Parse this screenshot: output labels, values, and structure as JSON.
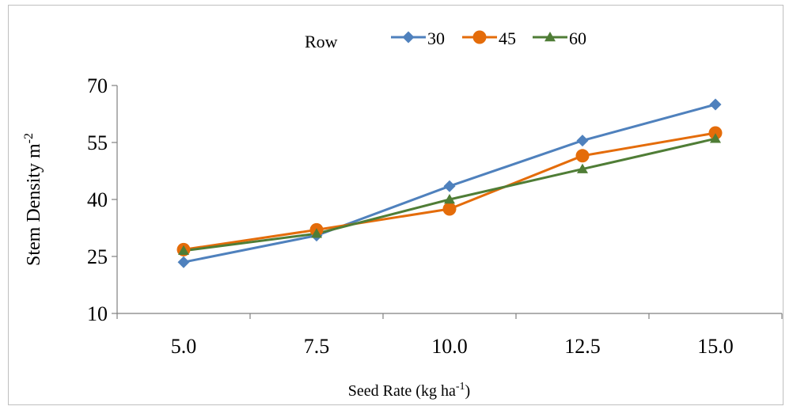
{
  "chart_data": {
    "type": "line",
    "title": "",
    "xlabel": "Seed Rate (kg ha",
    "xlabel_sup": "-1",
    "xlabel_end": ")",
    "ylabel": "Stem Density m",
    "ylabel_sup": "-2",
    "categories": [
      "5.0",
      "7.5",
      "10.0",
      "12.5",
      "15.0"
    ],
    "y_ticks": [
      "10",
      "25",
      "40",
      "55",
      "70"
    ],
    "ylim": [
      10,
      70
    ],
    "grid": false,
    "legend": {
      "title": "Row",
      "position": "top-center"
    },
    "series": [
      {
        "name": "30",
        "color": "#4f81bd",
        "marker": "diamond",
        "values": [
          23.5,
          30.5,
          43.5,
          55.5,
          65.0
        ]
      },
      {
        "name": "45",
        "color": "#e46c0a",
        "marker": "circle",
        "values": [
          26.8,
          32.0,
          37.5,
          51.5,
          57.5
        ]
      },
      {
        "name": "60",
        "color": "#4f7d36",
        "marker": "triangle",
        "values": [
          26.5,
          31.0,
          40.0,
          48.0,
          56.0
        ]
      }
    ]
  }
}
